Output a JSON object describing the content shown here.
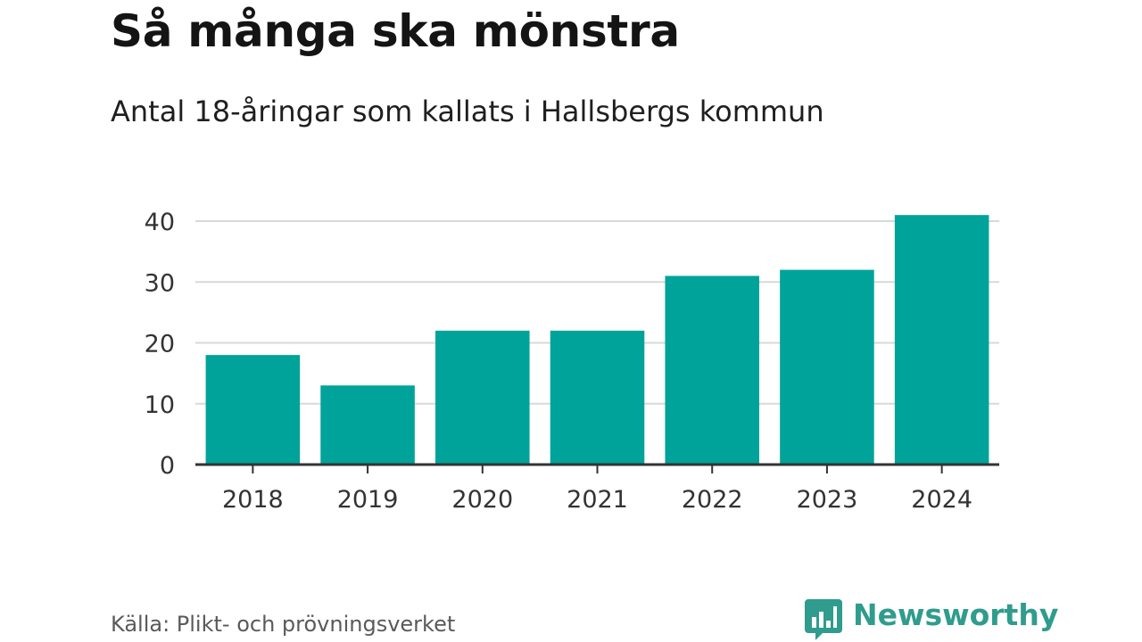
{
  "chart_data": {
    "type": "bar",
    "title": "Så många ska mönstra",
    "subtitle": "Antal 18-åringar som kallats i Hallsbergs kommun",
    "categories": [
      "2018",
      "2019",
      "2020",
      "2021",
      "2022",
      "2023",
      "2024"
    ],
    "values": [
      18,
      13,
      22,
      22,
      31,
      32,
      41
    ],
    "xlabel": "",
    "ylabel": "",
    "ylim": [
      0,
      40
    ],
    "yticks": [
      0,
      10,
      20,
      30,
      40
    ],
    "grid": true,
    "bar_color": "#00a39a",
    "grid_color": "#d9d9d9",
    "axis_color": "#333333"
  },
  "footer": {
    "source": "Källa: Plikt- och prövningsverket",
    "brand": "Newsworthy",
    "brand_color": "#2f9c8d"
  }
}
